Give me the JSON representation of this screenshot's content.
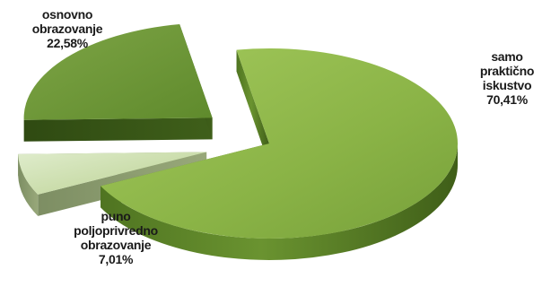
{
  "chart_data": {
    "type": "pie",
    "title": "",
    "slices": [
      {
        "label_lines": [
          "samo",
          "praktično",
          "iskustvo"
        ],
        "value_text": "70,41%",
        "value": 70.41,
        "color": "#8ab346"
      },
      {
        "label_lines": [
          "puno",
          "poljoprivredno",
          "obrazovanje"
        ],
        "value_text": "7,01%",
        "value": 7.01,
        "color": "#c6d9a4"
      },
      {
        "label_lines": [
          "osnovno",
          "obrazovanje"
        ],
        "value_text": "22,58%",
        "value": 22.58,
        "color": "#6f9a37"
      }
    ],
    "legend": "none",
    "style": "3d-exploded"
  }
}
